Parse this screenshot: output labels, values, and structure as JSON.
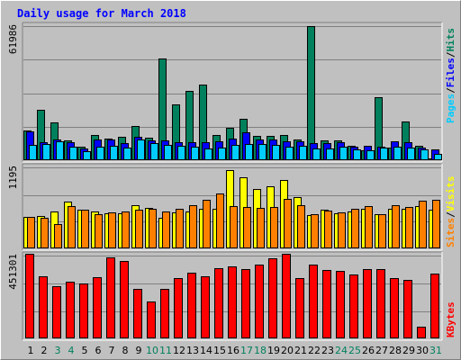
{
  "title": "Daily usage for March 2018",
  "colors": {
    "pages": "#00ccff",
    "files": "#0000ff",
    "hits": "#00805c",
    "visits": "#ffff00",
    "sites": "#ff8000",
    "kbytes": "#ff0000",
    "weekend_day": "#00805c",
    "day": "#000000"
  },
  "chart_data": [
    {
      "type": "bar",
      "name": "hits-files-pages",
      "max_label": "61986",
      "ylim": [
        0,
        61986
      ],
      "legend": [
        "Pages",
        "Files",
        "Hits"
      ],
      "legend_placement": "right-vertical",
      "grid": true,
      "categories": [
        "1",
        "2",
        "3",
        "4",
        "5",
        "6",
        "7",
        "8",
        "9",
        "10",
        "11",
        "12",
        "13",
        "14",
        "15",
        "16",
        "17",
        "18",
        "19",
        "20",
        "21",
        "22",
        "23",
        "24",
        "25",
        "26",
        "27",
        "28",
        "29",
        "30",
        "31"
      ],
      "series": [
        {
          "name": "Hits",
          "values": [
            13800,
            23500,
            17500,
            9200,
            6200,
            11800,
            9800,
            11000,
            15800,
            10500,
            47000,
            25700,
            32000,
            35000,
            11800,
            15000,
            19000,
            11300,
            11300,
            11500,
            9700,
            62000,
            9200,
            9300,
            6500,
            4400,
            29000,
            5900,
            18000,
            6800,
            1000
          ]
        },
        {
          "name": "Files",
          "values": [
            13400,
            8400,
            9400,
            8200,
            5600,
            9600,
            9400,
            7800,
            10900,
            9300,
            9300,
            8300,
            8300,
            8300,
            8700,
            10000,
            12900,
            9400,
            9400,
            8700,
            8600,
            7700,
            7800,
            8500,
            6400,
            6600,
            6200,
            8600,
            8400,
            5700,
            5000
          ]
        },
        {
          "name": "Pages",
          "values": [
            6900,
            7300,
            8800,
            6200,
            4000,
            6300,
            6500,
            5800,
            9700,
            7700,
            7200,
            6800,
            6400,
            5600,
            5700,
            7100,
            7300,
            7600,
            6900,
            6400,
            6500,
            5600,
            5600,
            6100,
            5000,
            4400,
            5700,
            6100,
            6000,
            4800,
            3000
          ]
        }
      ]
    },
    {
      "type": "bar",
      "name": "visits-sites",
      "max_label": "1195",
      "ylim": [
        0,
        1195
      ],
      "legend": [
        "Sites",
        "Visits"
      ],
      "legend_placement": "right-vertical",
      "grid": true,
      "categories": [
        "1",
        "2",
        "3",
        "4",
        "5",
        "6",
        "7",
        "8",
        "9",
        "10",
        "11",
        "12",
        "13",
        "14",
        "15",
        "16",
        "17",
        "18",
        "19",
        "20",
        "21",
        "22",
        "23",
        "24",
        "25",
        "26",
        "27",
        "28",
        "29",
        "30",
        "31"
      ],
      "series": [
        {
          "name": "Visits",
          "values": [
            462,
            484,
            543,
            685,
            565,
            547,
            513,
            518,
            635,
            596,
            451,
            533,
            543,
            582,
            589,
            1160,
            1050,
            880,
            920,
            1012,
            752,
            495,
            575,
            515,
            550,
            585,
            510,
            590,
            587,
            630,
            565
          ]
        },
        {
          "name": "Sites",
          "values": [
            460,
            452,
            365,
            618,
            575,
            511,
            530,
            540,
            570,
            581,
            544,
            587,
            643,
            716,
            814,
            619,
            614,
            603,
            605,
            735,
            642,
            503,
            564,
            531,
            588,
            628,
            501,
            639,
            608,
            705,
            715
          ]
        }
      ]
    },
    {
      "type": "bar",
      "name": "kbytes",
      "max_label": "451301",
      "ylim": [
        0,
        451301
      ],
      "legend": [
        "KBytes"
      ],
      "legend_placement": "right-vertical",
      "grid": true,
      "categories": [
        "1",
        "2",
        "3",
        "4",
        "5",
        "6",
        "7",
        "8",
        "9",
        "10",
        "11",
        "12",
        "13",
        "14",
        "15",
        "16",
        "17",
        "18",
        "19",
        "20",
        "21",
        "22",
        "23",
        "24",
        "25",
        "26",
        "27",
        "28",
        "29",
        "30",
        "31"
      ],
      "series": [
        {
          "name": "KBytes",
          "values": [
            460000,
            340000,
            285000,
            310000,
            300000,
            335000,
            440000,
            420000,
            270000,
            200000,
            270000,
            330000,
            360000,
            340000,
            385000,
            390000,
            380000,
            400000,
            435000,
            460000,
            330000,
            400000,
            375000,
            370000,
            350000,
            380000,
            380000,
            330000,
            320000,
            65000,
            355000
          ]
        }
      ]
    }
  ],
  "x_labels": [
    "1",
    "2",
    "3",
    "4",
    "5",
    "6",
    "7",
    "8",
    "9",
    "10",
    "11",
    "12",
    "13",
    "14",
    "15",
    "16",
    "17",
    "18",
    "19",
    "20",
    "21",
    "22",
    "23",
    "24",
    "25",
    "26",
    "27",
    "28",
    "29",
    "30",
    "31"
  ],
  "weekend_days": [
    3,
    4,
    10,
    11,
    17,
    18,
    24,
    25,
    31
  ]
}
